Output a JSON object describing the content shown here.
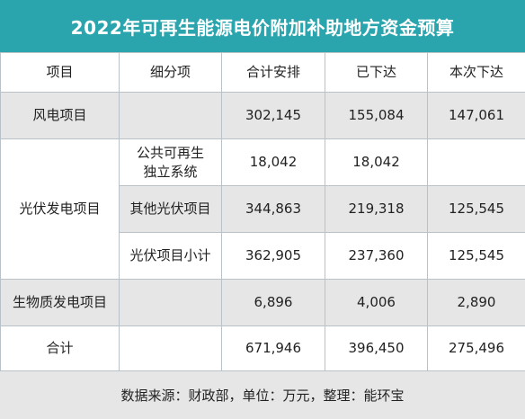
{
  "title": "2022年可再生能源电价附加补助地方资金预算",
  "colors": {
    "header_bg": "#2aa5ad",
    "shaded_row": "#e6e6e6",
    "border": "#b8c2c8"
  },
  "headers": {
    "item": "项目",
    "subitem": "细分项",
    "total_plan": "合计安排",
    "issued": "已下达",
    "current": "本次下达"
  },
  "rows": {
    "wind": {
      "item": "风电项目",
      "subitem": "",
      "total_plan": "302,145",
      "issued": "155,084",
      "current": "147,061"
    },
    "solar_group": "光伏发电项目",
    "solar_public": {
      "subitem_line1": "公共可再生",
      "subitem_line2": "独立系统",
      "total_plan": "18,042",
      "issued": "18,042",
      "current": ""
    },
    "solar_other": {
      "subitem": "其他光伏项目",
      "total_plan": "344,863",
      "issued": "219,318",
      "current": "125,545"
    },
    "solar_subtotal": {
      "subitem": "光伏项目小计",
      "total_plan": "362,905",
      "issued": "237,360",
      "current": "125,545"
    },
    "biomass": {
      "item": "生物质发电项目",
      "subitem": "",
      "total_plan": "6,896",
      "issued": "4,006",
      "current": "2,890"
    },
    "total": {
      "item": "合计",
      "subitem": "",
      "total_plan": "671,946",
      "issued": "396,450",
      "current": "275,496"
    }
  },
  "footer": "数据来源：财政部，单位：万元，整理：能环宝"
}
